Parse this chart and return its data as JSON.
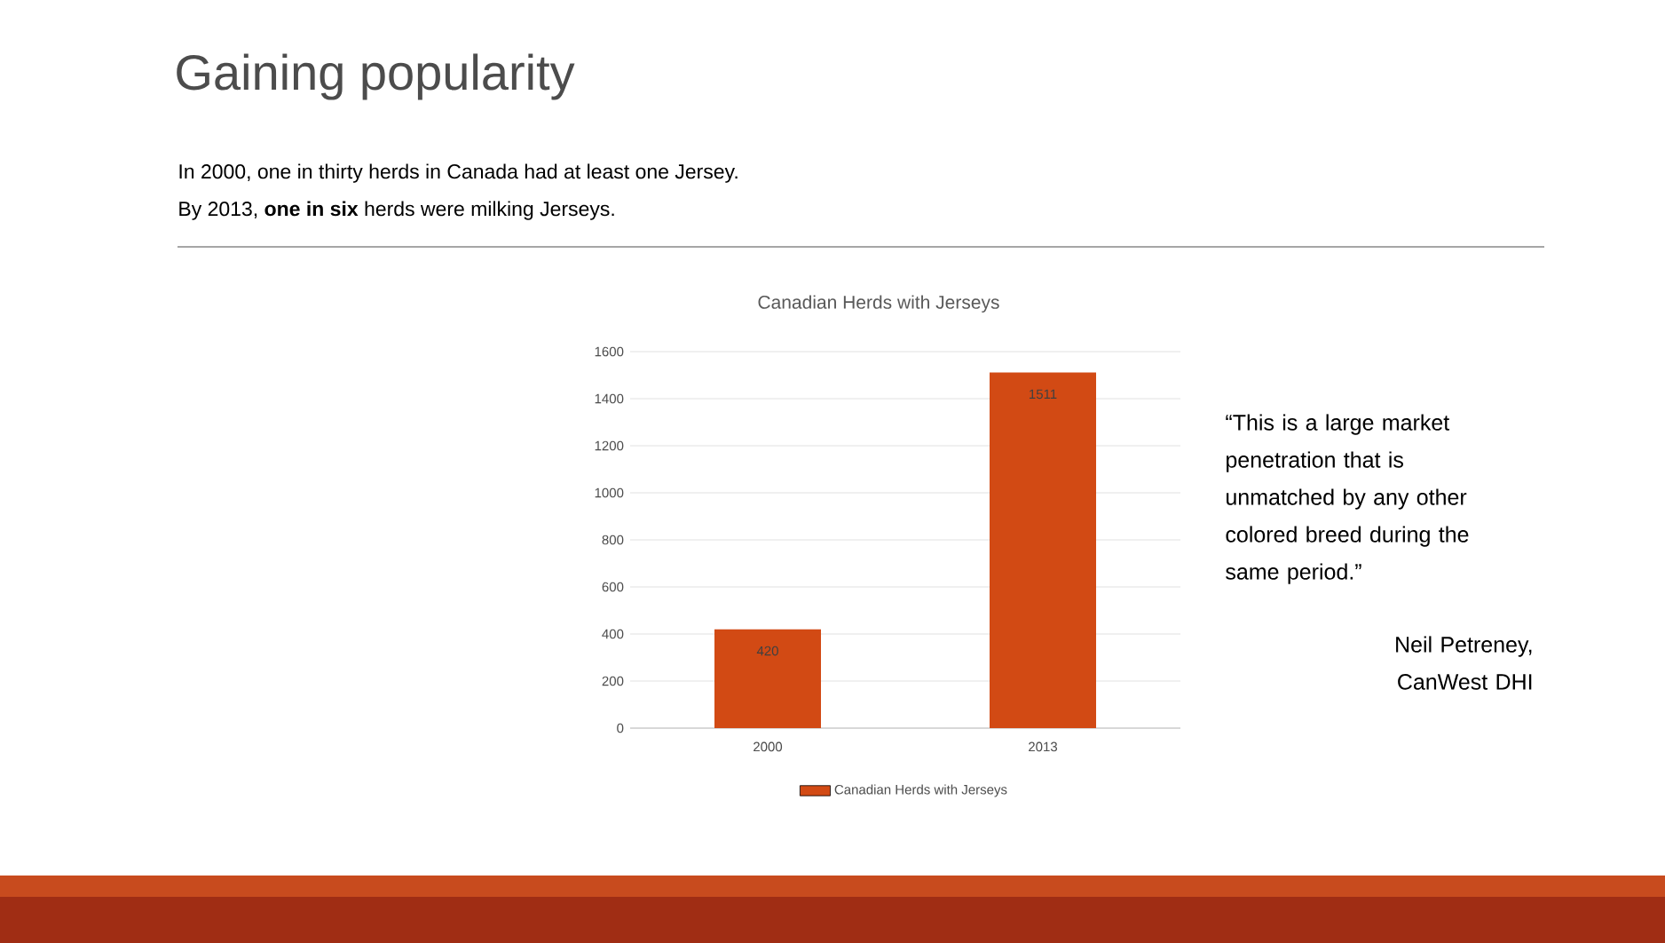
{
  "chart_data": {
    "type": "bar",
    "title": "Gaining popularity",
    "subtitle": "In 2000, one in thirty herds in Canada had at least one Jersey.",
    "annotations": [
      "By 2013, **one in six** herds were milking Jerseys.",
      "Canadian Herds with Jerseys",
      "“This is a large market penetration that is unmatched by any other colored breed during the same period.”",
      "Neil Petreney, CanWest DHI"
    ],
    "categories": [
      "2000",
      "2013"
    ],
    "series": [
      {
        "name": "Canadian Herds with Jerseys",
        "color": "#d24a14",
        "values": [
          420,
          1511
        ]
      }
    ],
    "ylim": [
      0,
      1600
    ],
    "yticks": [
      0,
      200,
      400,
      600,
      800,
      1000,
      1200,
      1400,
      1600
    ],
    "grid": "y",
    "legend": "bottom",
    "data_labels": true
  }
}
